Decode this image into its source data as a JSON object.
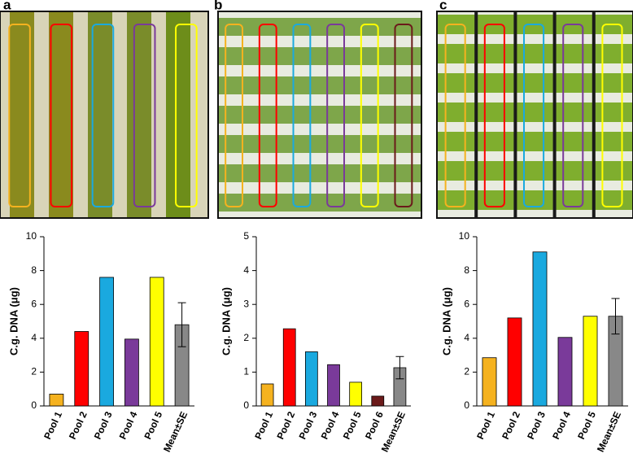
{
  "chart_data": [
    {
      "type": "bar",
      "panel": "a",
      "y_label": "C.g. DNA (μg)",
      "categories": [
        "Pool 1",
        "Pool 2",
        "Pool 3",
        "Pool 4",
        "Pool 5",
        "Mean±SE"
      ],
      "values": [
        0.7,
        4.4,
        7.6,
        3.95,
        7.6,
        4.8
      ],
      "errors": [
        null,
        null,
        null,
        null,
        null,
        1.3
      ],
      "colors": [
        "#f5b21f",
        "#ff0000",
        "#1aa9df",
        "#7a3a9a",
        "#ffff00",
        "#888888"
      ],
      "ylim": [
        0,
        10
      ],
      "yticks": [
        0,
        2,
        4,
        6,
        8,
        10
      ]
    },
    {
      "type": "bar",
      "panel": "b",
      "y_label": "C.g. DNA (μg)",
      "categories": [
        "Pool 1",
        "Pool 2",
        "Pool 3",
        "Pool 4",
        "Pool 5",
        "Pool 6",
        "Mean±SE"
      ],
      "values": [
        0.65,
        2.28,
        1.6,
        1.22,
        0.7,
        0.29,
        1.13
      ],
      "errors": [
        null,
        null,
        null,
        null,
        null,
        null,
        0.33
      ],
      "colors": [
        "#f5b21f",
        "#ff0000",
        "#1aa9df",
        "#7a3a9a",
        "#ffff00",
        "#6b1a1a",
        "#888888"
      ],
      "ylim": [
        0,
        5
      ],
      "yticks": [
        0,
        1,
        2,
        3,
        4,
        5
      ]
    },
    {
      "type": "bar",
      "panel": "c",
      "y_label": "C.g. DNA (μg)",
      "categories": [
        "Pool 1",
        "Pool 2",
        "Pool 3",
        "Pool 4",
        "Pool 5",
        "Mean±SE"
      ],
      "values": [
        2.85,
        5.2,
        9.1,
        4.05,
        5.3,
        5.3
      ],
      "errors": [
        null,
        null,
        null,
        null,
        null,
        1.05
      ],
      "colors": [
        "#f5b21f",
        "#ff0000",
        "#1aa9df",
        "#7a3a9a",
        "#ffff00",
        "#888888"
      ],
      "ylim": [
        0,
        10
      ],
      "yticks": [
        0,
        2,
        4,
        6,
        8,
        10
      ]
    }
  ]
}
